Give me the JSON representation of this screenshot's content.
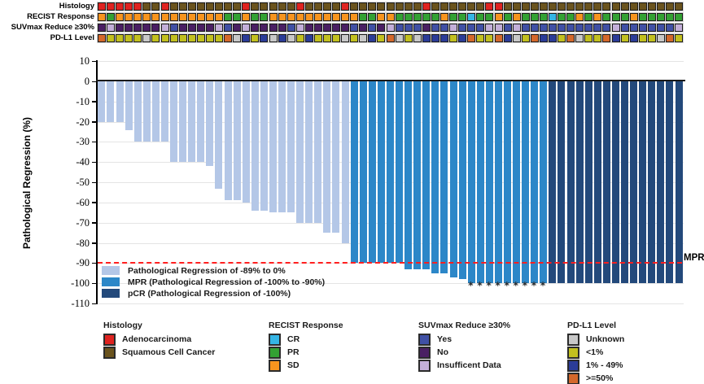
{
  "palette": {
    "adeno": "#DF2320",
    "squamous": "#6A531D",
    "recist_cr": "#35B5E5",
    "recist_pr": "#33A133",
    "recist_sd": "#F7941E",
    "suv_yes": "#4050A5",
    "suv_no": "#4A1F63",
    "suv_ins": "#C3AFD9",
    "pdl1_unknown": "#C8C8C8",
    "pdl1_lt1": "#C2C01F",
    "pdl1_1_49": "#2B3C98",
    "pdl1_ge50": "#D4682B",
    "bar_light": "#B4C7E7",
    "bar_mpr": "#2C87C8",
    "bar_pcr": "#23497B",
    "ref_line_red": "#FF1F1F"
  },
  "tracks": {
    "rows": [
      {
        "id": "histology",
        "label": "Histology",
        "key_map": {
          "A": "adeno",
          "S": "squamous"
        },
        "values": [
          "A",
          "A",
          "A",
          "A",
          "A",
          "S",
          "S",
          "A",
          "S",
          "S",
          "S",
          "S",
          "S",
          "S",
          "S",
          "S",
          "A",
          "S",
          "S",
          "S",
          "S",
          "S",
          "A",
          "S",
          "S",
          "S",
          "S",
          "A",
          "S",
          "S",
          "S",
          "S",
          "S",
          "S",
          "S",
          "S",
          "A",
          "S",
          "S",
          "S",
          "S",
          "S",
          "S",
          "A",
          "A",
          "S",
          "S",
          "S",
          "S",
          "S",
          "S",
          "S",
          "S",
          "S",
          "S",
          "S",
          "S",
          "S",
          "S",
          "S",
          "S",
          "S",
          "S",
          "S",
          "S"
        ]
      },
      {
        "id": "recist",
        "label": "RECIST Response",
        "key_map": {
          "O": "recist_sd",
          "G": "recist_pr",
          "C": "recist_cr"
        },
        "values": [
          "O",
          "G",
          "O",
          "O",
          "O",
          "O",
          "O",
          "O",
          "O",
          "O",
          "O",
          "O",
          "O",
          "O",
          "G",
          "G",
          "O",
          "G",
          "G",
          "O",
          "O",
          "O",
          "O",
          "O",
          "O",
          "O",
          "O",
          "O",
          "O",
          "G",
          "G",
          "O",
          "O",
          "G",
          "G",
          "G",
          "G",
          "G",
          "O",
          "G",
          "G",
          "C",
          "G",
          "G",
          "O",
          "G",
          "O",
          "G",
          "G",
          "G",
          "C",
          "G",
          "G",
          "O",
          "G",
          "O",
          "G",
          "G",
          "G",
          "O",
          "G",
          "G",
          "G",
          "G",
          "G"
        ]
      },
      {
        "id": "suvmax",
        "label": "SUVmax Reduce ≥30%",
        "key_map": {
          "B": "suv_yes",
          "P": "suv_no",
          "L": "suv_ins"
        },
        "values": [
          "P",
          "L",
          "P",
          "P",
          "P",
          "P",
          "P",
          "L",
          "B",
          "P",
          "P",
          "P",
          "P",
          "L",
          "B",
          "P",
          "L",
          "P",
          "P",
          "P",
          "P",
          "B",
          "L",
          "P",
          "P",
          "P",
          "P",
          "P",
          "B",
          "P",
          "B",
          "P",
          "L",
          "B",
          "B",
          "B",
          "P",
          "B",
          "B",
          "L",
          "B",
          "B",
          "B",
          "L",
          "L",
          "B",
          "L",
          "B",
          "B",
          "B",
          "B",
          "B",
          "B",
          "B",
          "B",
          "B",
          "B",
          "L",
          "B",
          "B",
          "B",
          "B",
          "B",
          "B",
          "L"
        ]
      },
      {
        "id": "pdl1",
        "label": "PD-L1 Level",
        "key_map": {
          "U": "pdl1_unknown",
          "Y": "pdl1_lt1",
          "B": "pdl1_1_49",
          "R": "pdl1_ge50"
        },
        "values": [
          "R",
          "Y",
          "Y",
          "Y",
          "Y",
          "U",
          "Y",
          "Y",
          "Y",
          "Y",
          "Y",
          "Y",
          "Y",
          "Y",
          "R",
          "U",
          "B",
          "Y",
          "B",
          "U",
          "B",
          "U",
          "Y",
          "B",
          "Y",
          "Y",
          "Y",
          "U",
          "Y",
          "U",
          "B",
          "Y",
          "R",
          "U",
          "Y",
          "U",
          "B",
          "B",
          "B",
          "Y",
          "B",
          "R",
          "Y",
          "Y",
          "R",
          "B",
          "U",
          "Y",
          "R",
          "B",
          "B",
          "Y",
          "R",
          "U",
          "Y",
          "Y",
          "R",
          "B",
          "Y",
          "B",
          "Y",
          "Y",
          "U",
          "R",
          "Y"
        ]
      }
    ]
  },
  "chart_data": {
    "type": "bar",
    "title": "",
    "xlabel": "",
    "ylabel": "Pathological Regression (%)",
    "ylim": [
      -110,
      10
    ],
    "yticks": [
      10,
      0,
      -10,
      -20,
      -30,
      -40,
      -50,
      -60,
      -70,
      -80,
      -90,
      -100,
      -110
    ],
    "grid": true,
    "values": [
      -20,
      -20,
      -20,
      -24,
      -30,
      -30,
      -30,
      -30,
      -40,
      -40,
      -40,
      -40,
      -42,
      -53,
      -59,
      -59,
      -60,
      -64,
      -64,
      -65,
      -65,
      -65,
      -70,
      -70,
      -70,
      -75,
      -75,
      -80,
      -90,
      -90,
      -90,
      -90,
      -90,
      -90,
      -93,
      -93,
      -93,
      -95,
      -95,
      -97,
      -98,
      -100,
      -100,
      -100,
      -100,
      -100,
      -100,
      -100,
      -100,
      -100,
      -100,
      -100,
      -100,
      -100,
      -100,
      -100,
      -100,
      -100,
      -100,
      -100,
      -100,
      -100,
      -100,
      -100,
      -100
    ],
    "classes": [
      "L",
      "L",
      "L",
      "L",
      "L",
      "L",
      "L",
      "L",
      "L",
      "L",
      "L",
      "L",
      "L",
      "L",
      "L",
      "L",
      "L",
      "L",
      "L",
      "L",
      "L",
      "L",
      "L",
      "L",
      "L",
      "L",
      "L",
      "L",
      "M",
      "M",
      "M",
      "M",
      "M",
      "M",
      "M",
      "M",
      "M",
      "M",
      "M",
      "M",
      "M",
      "M",
      "M",
      "M",
      "M",
      "M",
      "M",
      "M",
      "M",
      "M",
      "P",
      "P",
      "P",
      "P",
      "P",
      "P",
      "P",
      "P",
      "P",
      "P",
      "P",
      "P",
      "P",
      "P",
      "P"
    ],
    "class_map": {
      "L": "bar_light",
      "M": "bar_mpr",
      "P": "bar_pcr"
    },
    "asterisk_bars": [
      42,
      43,
      44,
      45,
      46,
      47,
      48,
      49,
      50
    ],
    "reference_line": {
      "value": -90,
      "label": "MPR"
    },
    "legend": [
      {
        "key": "bar_light",
        "label": "Pathological Regression of -89% to 0%"
      },
      {
        "key": "bar_mpr",
        "label": "MPR (Pathological Regression of -100% to -90%)"
      },
      {
        "key": "bar_pcr",
        "label": "pCR (Pathological Regression of -100%)"
      }
    ]
  },
  "bottom_legend": [
    {
      "header": "Histology",
      "items": [
        {
          "key": "adeno",
          "label": "Adenocarcinoma"
        },
        {
          "key": "squamous",
          "label": "Squamous Cell Cancer"
        }
      ]
    },
    {
      "header": "RECIST Response",
      "items": [
        {
          "key": "recist_cr",
          "label": "CR"
        },
        {
          "key": "recist_pr",
          "label": "PR"
        },
        {
          "key": "recist_sd",
          "label": "SD"
        }
      ]
    },
    {
      "header": "SUVmax Reduce ≥30%",
      "items": [
        {
          "key": "suv_yes",
          "label": "Yes"
        },
        {
          "key": "suv_no",
          "label": "No"
        },
        {
          "key": "suv_ins",
          "label": "Insufficent Data"
        }
      ]
    },
    {
      "header": "PD-L1 Level",
      "items": [
        {
          "key": "pdl1_unknown",
          "label": "Unknown"
        },
        {
          "key": "pdl1_lt1",
          "label": "<1%"
        },
        {
          "key": "pdl1_1_49",
          "label": "1% - 49%"
        },
        {
          "key": "pdl1_ge50",
          "label": ">=50%"
        }
      ]
    }
  ]
}
